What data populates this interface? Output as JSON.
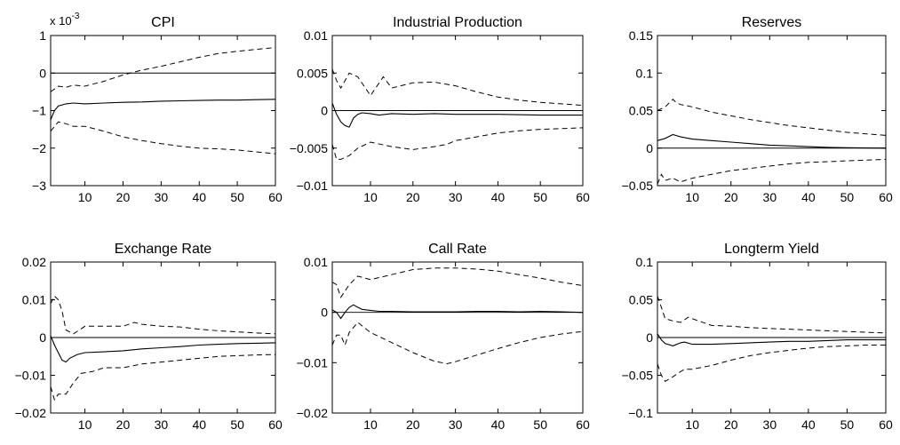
{
  "chart_data": [
    {
      "type": "line",
      "title": "CPI",
      "scale_label": "x 10",
      "scale_exponent": "-3",
      "xlim": [
        1,
        60
      ],
      "ylim": [
        -3,
        1
      ],
      "xticks": [
        10,
        20,
        30,
        40,
        50,
        60
      ],
      "xtick_labels": [
        "10",
        "20",
        "30",
        "40",
        "50",
        "60"
      ],
      "yticks": [
        -3,
        -2,
        -1,
        0,
        1
      ],
      "ytick_labels": [
        "−3",
        "−2",
        "−1",
        "0",
        "1"
      ],
      "series": [
        {
          "role": "median",
          "x": [
            1,
            2,
            3,
            5,
            7,
            10,
            15,
            20,
            25,
            30,
            35,
            40,
            45,
            50,
            55,
            60
          ],
          "y": [
            -1.25,
            -1.0,
            -0.88,
            -0.82,
            -0.8,
            -0.82,
            -0.8,
            -0.78,
            -0.77,
            -0.75,
            -0.74,
            -0.73,
            -0.72,
            -0.72,
            -0.71,
            -0.7
          ]
        },
        {
          "role": "upper",
          "x": [
            1,
            3,
            5,
            7,
            10,
            15,
            20,
            25,
            30,
            35,
            40,
            45,
            50,
            55,
            60
          ],
          "y": [
            -0.5,
            -0.35,
            -0.38,
            -0.32,
            -0.35,
            -0.22,
            -0.05,
            0.08,
            0.18,
            0.3,
            0.42,
            0.52,
            0.58,
            0.63,
            0.68
          ]
        },
        {
          "role": "lower",
          "x": [
            1,
            3,
            5,
            7,
            10,
            15,
            20,
            25,
            30,
            35,
            40,
            45,
            50,
            55,
            60
          ],
          "y": [
            -1.55,
            -1.3,
            -1.35,
            -1.42,
            -1.42,
            -1.55,
            -1.7,
            -1.8,
            -1.88,
            -1.95,
            -2.0,
            -2.02,
            -2.05,
            -2.1,
            -2.15
          ]
        }
      ]
    },
    {
      "type": "line",
      "title": "Industrial Production",
      "xlim": [
        1,
        60
      ],
      "ylim": [
        -0.01,
        0.01
      ],
      "xticks": [
        10,
        20,
        30,
        40,
        50,
        60
      ],
      "xtick_labels": [
        "10",
        "20",
        "30",
        "40",
        "50",
        "60"
      ],
      "yticks": [
        -0.01,
        -0.005,
        0,
        0.005,
        0.01
      ],
      "ytick_labels": [
        "−0.01",
        "−0.005",
        "0",
        "0.005",
        "0.01"
      ],
      "series": [
        {
          "role": "median",
          "x": [
            1,
            2,
            3,
            4,
            5,
            6,
            7,
            8,
            10,
            12,
            15,
            20,
            25,
            30,
            35,
            40,
            50,
            60
          ],
          "y": [
            0.001,
            -0.0005,
            -0.0015,
            -0.002,
            -0.0022,
            -0.001,
            -0.0005,
            -0.0003,
            -0.0004,
            -0.0006,
            -0.0004,
            -0.0005,
            -0.0004,
            -0.0005,
            -0.0005,
            -0.0005,
            -0.0006,
            -0.0006
          ]
        },
        {
          "role": "upper",
          "x": [
            1,
            2,
            3,
            5,
            7,
            10,
            13,
            15,
            20,
            25,
            30,
            35,
            40,
            45,
            50,
            55,
            60
          ],
          "y": [
            0.0055,
            0.004,
            0.003,
            0.005,
            0.0045,
            0.002,
            0.0045,
            0.003,
            0.0037,
            0.0038,
            0.0033,
            0.0025,
            0.0018,
            0.0014,
            0.0011,
            0.0009,
            0.0007
          ]
        },
        {
          "role": "lower",
          "x": [
            1,
            2,
            3,
            5,
            7,
            10,
            15,
            20,
            25,
            28,
            30,
            35,
            40,
            45,
            50,
            55,
            60
          ],
          "y": [
            -0.0045,
            -0.0065,
            -0.0065,
            -0.006,
            -0.005,
            -0.0042,
            -0.0048,
            -0.0052,
            -0.0048,
            -0.0045,
            -0.004,
            -0.0035,
            -0.003,
            -0.0027,
            -0.0025,
            -0.0024,
            -0.0023
          ]
        }
      ]
    },
    {
      "type": "line",
      "title": "Reserves",
      "xlim": [
        1,
        60
      ],
      "ylim": [
        -0.05,
        0.15
      ],
      "xticks": [
        10,
        20,
        30,
        40,
        50,
        60
      ],
      "xtick_labels": [
        "10",
        "20",
        "30",
        "40",
        "50",
        "60"
      ],
      "yticks": [
        -0.05,
        0,
        0.05,
        0.1,
        0.15
      ],
      "ytick_labels": [
        "−0.05",
        "0",
        "0.05",
        "0.1",
        "0.15"
      ],
      "series": [
        {
          "role": "median",
          "x": [
            1,
            3,
            5,
            7,
            10,
            15,
            20,
            25,
            30,
            35,
            40,
            45,
            50,
            55,
            60
          ],
          "y": [
            0.01,
            0.013,
            0.018,
            0.015,
            0.012,
            0.01,
            0.008,
            0.006,
            0.004,
            0.003,
            0.002,
            0.001,
            0.0005,
            0.0002,
            0.0
          ]
        },
        {
          "role": "upper",
          "x": [
            1,
            3,
            5,
            6,
            7,
            10,
            15,
            20,
            25,
            30,
            35,
            40,
            45,
            50,
            55,
            60
          ],
          "y": [
            0.05,
            0.055,
            0.065,
            0.06,
            0.058,
            0.055,
            0.048,
            0.043,
            0.038,
            0.034,
            0.03,
            0.027,
            0.024,
            0.021,
            0.019,
            0.017
          ]
        },
        {
          "role": "lower",
          "x": [
            1,
            2,
            3,
            5,
            7,
            10,
            15,
            20,
            25,
            30,
            35,
            40,
            45,
            50,
            55,
            60
          ],
          "y": [
            -0.048,
            -0.035,
            -0.043,
            -0.04,
            -0.045,
            -0.04,
            -0.035,
            -0.03,
            -0.027,
            -0.024,
            -0.021,
            -0.019,
            -0.018,
            -0.017,
            -0.016,
            -0.015
          ]
        }
      ]
    },
    {
      "type": "line",
      "title": "Exchange Rate",
      "xlim": [
        1,
        60
      ],
      "ylim": [
        -0.02,
        0.02
      ],
      "xticks": [
        10,
        20,
        30,
        40,
        50,
        60
      ],
      "xtick_labels": [
        "10",
        "20",
        "30",
        "40",
        "50",
        "60"
      ],
      "yticks": [
        -0.02,
        -0.01,
        0,
        0.01,
        0.02
      ],
      "ytick_labels": [
        "−0.02",
        "−0.01",
        "0",
        "0.01",
        "0.02"
      ],
      "series": [
        {
          "role": "median",
          "x": [
            1,
            2,
            3,
            4,
            5,
            6,
            8,
            10,
            15,
            20,
            25,
            30,
            35,
            40,
            45,
            50,
            55,
            60
          ],
          "y": [
            0.0005,
            -0.002,
            -0.004,
            -0.006,
            -0.0065,
            -0.0055,
            -0.0045,
            -0.004,
            -0.0038,
            -0.0035,
            -0.003,
            -0.0027,
            -0.0024,
            -0.002,
            -0.0018,
            -0.0016,
            -0.0015,
            -0.0014
          ]
        },
        {
          "role": "upper",
          "x": [
            1,
            2,
            3,
            4,
            5,
            7,
            10,
            15,
            20,
            23,
            25,
            30,
            35,
            40,
            45,
            50,
            55,
            60
          ],
          "y": [
            0.009,
            0.011,
            0.01,
            0.007,
            0.002,
            0.001,
            0.003,
            0.003,
            0.003,
            0.004,
            0.0035,
            0.003,
            0.0028,
            0.0022,
            0.0018,
            0.0015,
            0.0012,
            0.001
          ]
        },
        {
          "role": "lower",
          "x": [
            1,
            2,
            3,
            5,
            7,
            9,
            12,
            15,
            20,
            25,
            30,
            35,
            40,
            45,
            50,
            55,
            60
          ],
          "y": [
            -0.013,
            -0.0165,
            -0.015,
            -0.015,
            -0.012,
            -0.0095,
            -0.009,
            -0.008,
            -0.008,
            -0.007,
            -0.0065,
            -0.006,
            -0.0055,
            -0.005,
            -0.0048,
            -0.0046,
            -0.0045
          ]
        }
      ]
    },
    {
      "type": "line",
      "title": "Call Rate",
      "xlim": [
        1,
        60
      ],
      "ylim": [
        -0.02,
        0.01
      ],
      "xticks": [
        10,
        20,
        30,
        40,
        50,
        60
      ],
      "xtick_labels": [
        "10",
        "20",
        "30",
        "40",
        "50",
        "60"
      ],
      "yticks": [
        -0.02,
        -0.01,
        0,
        0.01
      ],
      "ytick_labels": [
        "−0.02",
        "−0.01",
        "0",
        "0.01"
      ],
      "series": [
        {
          "role": "median",
          "x": [
            1,
            2,
            3,
            4,
            5,
            6,
            7,
            8,
            10,
            12,
            15,
            20,
            25,
            30,
            35,
            40,
            45,
            50,
            55,
            60
          ],
          "y": [
            0.0005,
            0.0,
            -0.0012,
            0.0,
            0.001,
            0.0015,
            0.001,
            0.0006,
            0.0004,
            0.0002,
            0.0002,
            0.0001,
            0.0001,
            0.0001,
            0.0002,
            0.0002,
            0.0001,
            0.0002,
            0.0001,
            0.0
          ]
        },
        {
          "role": "upper",
          "x": [
            1,
            2,
            3,
            5,
            7,
            10,
            15,
            20,
            25,
            30,
            35,
            40,
            45,
            50,
            55,
            60
          ],
          "y": [
            0.006,
            0.0055,
            0.003,
            0.0055,
            0.0072,
            0.0065,
            0.0075,
            0.0085,
            0.0088,
            0.0088,
            0.0086,
            0.0082,
            0.0075,
            0.0068,
            0.006,
            0.0053
          ]
        },
        {
          "role": "lower",
          "x": [
            1,
            2,
            3,
            4,
            5,
            7,
            10,
            15,
            20,
            25,
            28,
            30,
            35,
            40,
            45,
            50,
            55,
            60
          ],
          "y": [
            -0.0065,
            -0.0045,
            -0.0045,
            -0.0065,
            -0.004,
            -0.002,
            -0.004,
            -0.006,
            -0.008,
            -0.0097,
            -0.0102,
            -0.0098,
            -0.0085,
            -0.0072,
            -0.006,
            -0.005,
            -0.0043,
            -0.0038
          ]
        }
      ]
    },
    {
      "type": "line",
      "title": "Longterm Yield",
      "xlim": [
        1,
        60
      ],
      "ylim": [
        -0.1,
        0.1
      ],
      "xticks": [
        10,
        20,
        30,
        40,
        50,
        60
      ],
      "xtick_labels": [
        "10",
        "20",
        "30",
        "40",
        "50",
        "60"
      ],
      "yticks": [
        -0.1,
        -0.05,
        0,
        0.05,
        0.1
      ],
      "ytick_labels": [
        "−0.1",
        "−0.05",
        "0",
        "0.05",
        "0.1"
      ],
      "series": [
        {
          "role": "median",
          "x": [
            1,
            2,
            3,
            5,
            7,
            8,
            10,
            15,
            20,
            25,
            30,
            35,
            40,
            45,
            50,
            55,
            60
          ],
          "y": [
            0.005,
            -0.003,
            -0.008,
            -0.011,
            -0.007,
            -0.006,
            -0.009,
            -0.009,
            -0.008,
            -0.007,
            -0.006,
            -0.005,
            -0.005,
            -0.004,
            -0.003,
            -0.003,
            -0.003
          ]
        },
        {
          "role": "upper",
          "x": [
            1,
            2,
            3,
            5,
            7,
            9,
            10,
            15,
            20,
            25,
            30,
            35,
            40,
            45,
            50,
            55,
            60
          ],
          "y": [
            0.055,
            0.04,
            0.025,
            0.022,
            0.02,
            0.027,
            0.025,
            0.016,
            0.015,
            0.013,
            0.012,
            0.011,
            0.01,
            0.009,
            0.008,
            0.007,
            0.006
          ]
        },
        {
          "role": "lower",
          "x": [
            1,
            2,
            3,
            5,
            7,
            8,
            10,
            15,
            20,
            25,
            30,
            35,
            40,
            45,
            50,
            55,
            60
          ],
          "y": [
            -0.035,
            -0.05,
            -0.058,
            -0.052,
            -0.045,
            -0.042,
            -0.042,
            -0.037,
            -0.03,
            -0.024,
            -0.02,
            -0.017,
            -0.014,
            -0.012,
            -0.011,
            -0.01,
            -0.01
          ]
        }
      ]
    }
  ]
}
